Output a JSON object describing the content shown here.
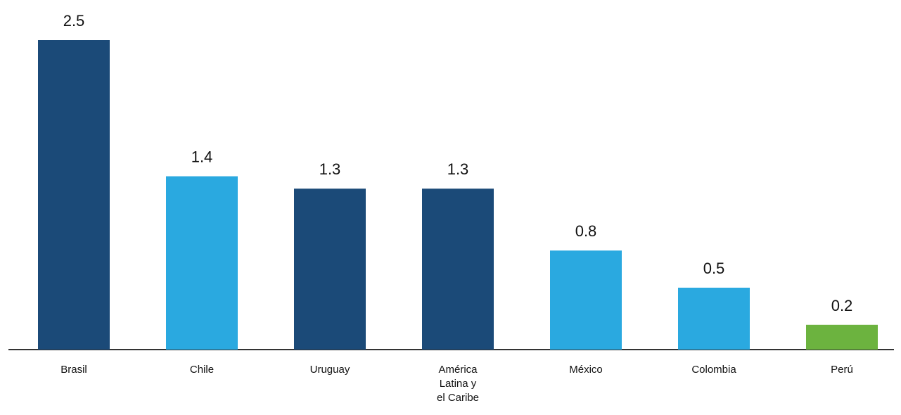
{
  "chart_data": {
    "type": "bar",
    "title": "",
    "xlabel": "",
    "ylabel": "",
    "ylim": [
      0,
      2.5
    ],
    "grid": false,
    "legend": "none",
    "categories": [
      [
        "Brasil"
      ],
      [
        "Chile"
      ],
      [
        "Uruguay"
      ],
      [
        "América",
        "Latina y",
        "el Caribe"
      ],
      [
        "México"
      ],
      [
        "Colombia"
      ],
      [
        "Perú"
      ]
    ],
    "values": [
      2.5,
      1.4,
      1.3,
      1.3,
      0.8,
      0.5,
      0.2
    ],
    "value_labels": [
      "2.5",
      "1.4",
      "1.3",
      "1.3",
      "0.8",
      "0.5",
      "0.2"
    ],
    "colors": [
      "#1b4a78",
      "#2aa9e0",
      "#1b4a78",
      "#1b4a78",
      "#2aa9e0",
      "#2aa9e0",
      "#6cb33f"
    ],
    "axis_color": "#333333"
  }
}
